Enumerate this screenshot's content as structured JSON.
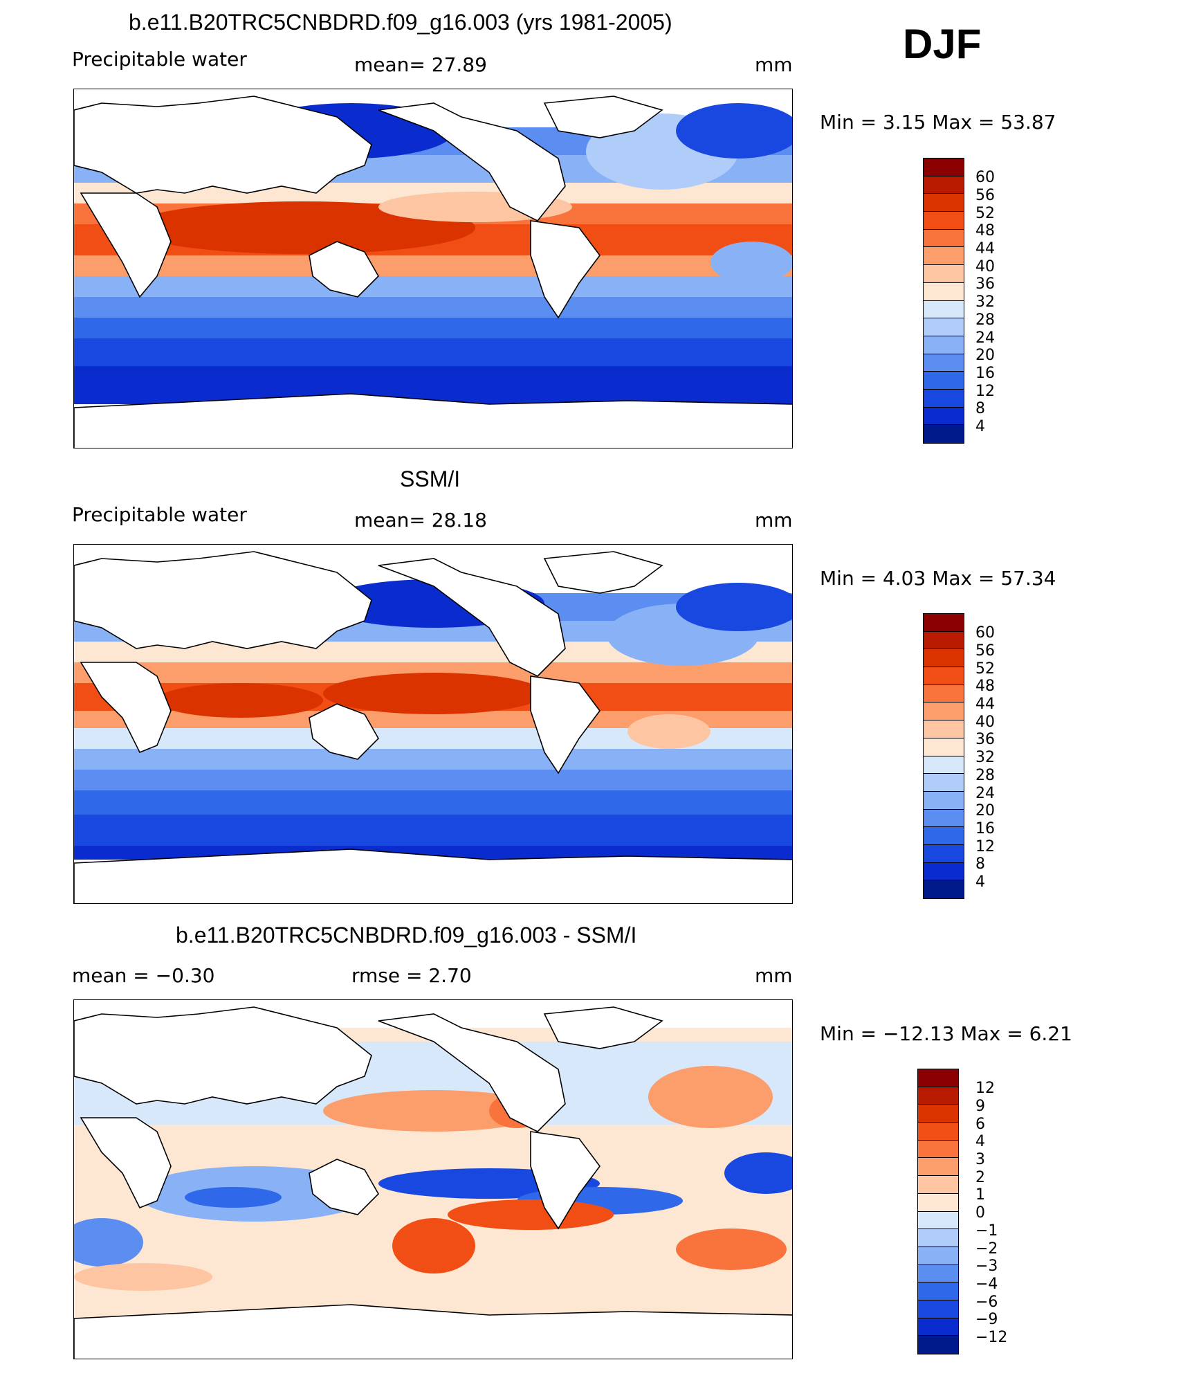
{
  "page": {
    "season": "DJF"
  },
  "chart_data": [
    {
      "type": "heatmap",
      "title": "b.e11.B20TRC5CNBDRD.f09_g16.003 (yrs 1981-2005)",
      "left_label": "Precipitable  water",
      "center_label": "mean=   27.89",
      "right_label": "mm",
      "minmax_label": "Min  =     3.15  Max  =    53.87",
      "stats": {
        "mean": 27.89,
        "min": 3.15,
        "max": 53.87
      },
      "colorbar": {
        "labels": [
          "60",
          "56",
          "52",
          "48",
          "44",
          "40",
          "36",
          "32",
          "28",
          "24",
          "20",
          "16",
          "12",
          "8",
          "4"
        ],
        "colors": [
          "#8b0000",
          "#b81a00",
          "#db3300",
          "#f04e14",
          "#f9733c",
          "#fc9d6c",
          "#fdc5a1",
          "#fde6d2",
          "#d7e8fb",
          "#b0cdfa",
          "#89b1f6",
          "#5b8ef0",
          "#3068ea",
          "#1848df",
          "#0a2ccf",
          "#001a8c"
        ]
      }
    },
    {
      "type": "heatmap",
      "title": "SSM/I",
      "left_label": "Precipitable  water",
      "center_label": "mean=   28.18",
      "right_label": "mm",
      "minmax_label": "Min  =     4.03  Max  =    57.34",
      "stats": {
        "mean": 28.18,
        "min": 4.03,
        "max": 57.34
      },
      "colorbar": {
        "labels": [
          "60",
          "56",
          "52",
          "48",
          "44",
          "40",
          "36",
          "32",
          "28",
          "24",
          "20",
          "16",
          "12",
          "8",
          "4"
        ],
        "colors": [
          "#8b0000",
          "#b81a00",
          "#db3300",
          "#f04e14",
          "#f9733c",
          "#fc9d6c",
          "#fdc5a1",
          "#fde6d2",
          "#d7e8fb",
          "#b0cdfa",
          "#89b1f6",
          "#5b8ef0",
          "#3068ea",
          "#1848df",
          "#0a2ccf",
          "#001a8c"
        ]
      }
    },
    {
      "type": "heatmap",
      "title": "b.e11.B20TRC5CNBDRD.f09_g16.003 - SSM/I",
      "left_label": "mean  =    −0.30",
      "center_label": "rmse  =     2.70",
      "right_label": "mm",
      "minmax_label": "Min  = −12.13  Max  =     6.21",
      "stats": {
        "mean": -0.3,
        "rmse": 2.7,
        "min": -12.13,
        "max": 6.21
      },
      "colorbar": {
        "labels": [
          "12",
          "9",
          "6",
          "4",
          "3",
          "2",
          "1",
          "0",
          "−1",
          "−2",
          "−3",
          "−4",
          "−6",
          "−9",
          "−12"
        ],
        "colors": [
          "#8b0000",
          "#b81a00",
          "#db3300",
          "#f04e14",
          "#f9733c",
          "#fc9d6c",
          "#fdc5a1",
          "#fde6d2",
          "#d7e8fb",
          "#b0cdfa",
          "#89b1f6",
          "#5b8ef0",
          "#3068ea",
          "#1848df",
          "#0a2ccf",
          "#001a8c"
        ]
      }
    }
  ]
}
